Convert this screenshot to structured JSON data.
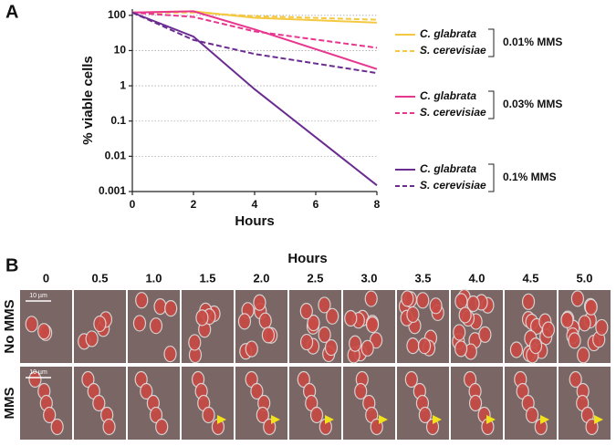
{
  "chart_data": {
    "type": "line",
    "panel_label": "A",
    "xlabel": "Hours",
    "ylabel": "% viable cells",
    "x": [
      0,
      2,
      4,
      8
    ],
    "xlim": [
      0,
      8
    ],
    "xticks": [
      0,
      2,
      4,
      6,
      8
    ],
    "ylim": [
      0.001,
      150
    ],
    "log_y": true,
    "grid": true,
    "yticks": [
      0.001,
      0.01,
      0.1,
      1,
      10,
      100
    ],
    "series": [
      {
        "name": "C. glabrata",
        "color": "#f5c842",
        "dashed": false,
        "values": [
          120,
          130,
          85,
          62
        ]
      },
      {
        "name": "S. cerevisiae",
        "color": "#f5c842",
        "dashed": true,
        "values": [
          120,
          120,
          95,
          75
        ]
      },
      {
        "name": "C. glabrata",
        "color": "#e8368f",
        "dashed": false,
        "values": [
          120,
          130,
          40,
          3
        ]
      },
      {
        "name": "S. cerevisiae",
        "color": "#e8368f",
        "dashed": true,
        "values": [
          120,
          90,
          35,
          12
        ]
      },
      {
        "name": "C. glabrata",
        "color": "#6a2c91",
        "dashed": false,
        "values": [
          120,
          25,
          0.8,
          0.0015
        ]
      },
      {
        "name": "S. cerevisiae",
        "color": "#6a2c91",
        "dashed": true,
        "values": [
          120,
          20,
          8,
          2.3
        ]
      }
    ],
    "legend_groups": [
      "0.01% MMS",
      "0.03% MMS",
      "0.1% MMS"
    ]
  },
  "panel_b": {
    "panel_label": "B",
    "title": "Hours",
    "timepoints": [
      "0",
      "0.5",
      "1.0",
      "1.5",
      "2.0",
      "2.5",
      "3.0",
      "3.5",
      "4.0",
      "4.5",
      "5.0"
    ],
    "rows": [
      {
        "label": "No MMS",
        "scale_bar": "10 µm"
      },
      {
        "label": "MMS",
        "scale_bar": "10 µm"
      }
    ]
  }
}
